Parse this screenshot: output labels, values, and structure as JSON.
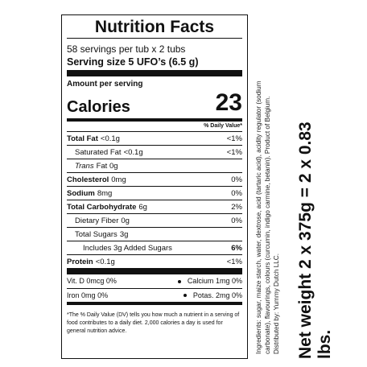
{
  "panel": {
    "title": "Nutrition Facts",
    "servings": "58 servings per tub x 2 tubs",
    "serving_size": "Serving size 5 UFO’s (6.5 g)",
    "amount_per_serving": "Amount per serving",
    "calories_label": "Calories",
    "calories_value": "23",
    "dv_header": "% Daily Value*",
    "rows": [
      {
        "label": "Total Fat",
        "value": "<0.1g",
        "pct": "<1%"
      },
      {
        "label": "Saturated Fat",
        "value": "<0.1g",
        "pct": "<1%"
      },
      {
        "label": "Trans",
        "value": "Fat 0g",
        "pct": ""
      },
      {
        "label": "Cholesterol",
        "value": "0mg",
        "pct": "0%"
      },
      {
        "label": "Sodium",
        "value": "8mg",
        "pct": "0%"
      },
      {
        "label": "Total Carbohydrate",
        "value": "6g",
        "pct": "2%"
      },
      {
        "label": "Dietary Fiber",
        "value": "0g",
        "pct": "0%"
      },
      {
        "label": "Total Sugars",
        "value": "3g",
        "pct": ""
      },
      {
        "label": "Includes 3g Added Sugars",
        "value": "",
        "pct": "6%"
      },
      {
        "label": "Protein",
        "value": "<0.1g",
        "pct": "<1%"
      }
    ],
    "vitamins": [
      {
        "left_label": "Vit. D",
        "left_value": "0mcg",
        "left_pct": "0%",
        "right_label": "Calcium",
        "right_value": "1mg",
        "right_pct": "0%"
      },
      {
        "left_label": "Iron",
        "left_value": "0mg",
        "left_pct": "0%",
        "right_label": "Potas.",
        "right_value": "2mg",
        "right_pct": "0%"
      }
    ],
    "footnote": "*The % Daily Value (DV) tells you how much a nutrient in a serving of food contributes to a daily diet. 2,000 calories a day is used for general nutrition advice."
  },
  "side": {
    "ingredients": "Ingredients: sugar, maize starch, water, dextrose, acid (tartaric acid), acidity regulator (sodium carbonate), flavourings, colours (curcumin, indigo carmine, betanin). Product of Belgium. Distributed by: Yummy Dutch LLC.",
    "net_weight": "Net weight 2 x 375g = 2 x 0.83 lbs."
  }
}
